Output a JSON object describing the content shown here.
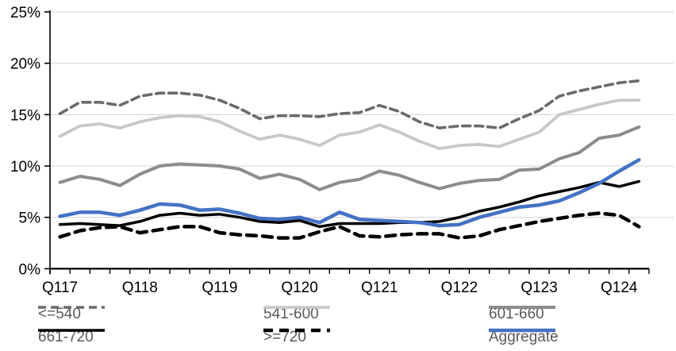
{
  "chart_data": {
    "type": "line",
    "title": "",
    "grid": "horizontal-only",
    "legend_position": "bottom-two-rows",
    "y_axis": {
      "min": 0,
      "max": 25,
      "step": 5,
      "tick_labels": [
        "0%",
        "5%",
        "10%",
        "15%",
        "20%",
        "25%"
      ]
    },
    "x_axis": {
      "n_points": 30,
      "label_every": 4,
      "tick_labels": [
        "Q117",
        "Q118",
        "Q119",
        "Q120",
        "Q121",
        "Q122",
        "Q123",
        "Q124"
      ]
    },
    "series": [
      {
        "name": "<=540",
        "color": "#6b6b6b",
        "style": "dashed",
        "width": 3.6,
        "dash": "10 6",
        "values": [
          15.1,
          16.2,
          16.2,
          15.9,
          16.8,
          17.1,
          17.1,
          16.9,
          16.4,
          15.6,
          14.6,
          14.9,
          14.9,
          14.8,
          15.1,
          15.2,
          15.9,
          15.3,
          14.3,
          13.7,
          13.9,
          13.9,
          13.7,
          14.6,
          15.4,
          16.8,
          17.3,
          17.7,
          18.1,
          18.3
        ]
      },
      {
        "name": "541-600",
        "color": "#c8c8c8",
        "style": "solid",
        "width": 3.8,
        "dash": "",
        "values": [
          12.9,
          13.9,
          14.1,
          13.7,
          14.3,
          14.7,
          14.9,
          14.8,
          14.3,
          13.4,
          12.6,
          13.0,
          12.6,
          12.0,
          13.0,
          13.3,
          14.0,
          13.3,
          12.4,
          11.7,
          12.0,
          12.1,
          11.9,
          12.6,
          13.3,
          15.0,
          15.5,
          16.0,
          16.4,
          16.4
        ]
      },
      {
        "name": "601-660",
        "color": "#8c8c8c",
        "style": "solid",
        "width": 4,
        "dash": "",
        "values": [
          8.4,
          9.0,
          8.7,
          8.1,
          9.2,
          10.0,
          10.2,
          10.1,
          10.0,
          9.7,
          8.8,
          9.2,
          8.7,
          7.7,
          8.4,
          8.7,
          9.5,
          9.1,
          8.4,
          7.8,
          8.3,
          8.6,
          8.7,
          9.6,
          9.7,
          10.7,
          11.3,
          12.7,
          13.0,
          13.8
        ]
      },
      {
        "name": "661-720",
        "color": "#000000",
        "style": "solid",
        "width": 3.5,
        "dash": "",
        "values": [
          4.3,
          4.4,
          4.3,
          4.2,
          4.6,
          5.2,
          5.4,
          5.2,
          5.3,
          5.0,
          4.6,
          4.5,
          4.7,
          4.1,
          4.4,
          4.4,
          4.4,
          4.5,
          4.5,
          4.6,
          5.0,
          5.6,
          6.0,
          6.5,
          7.1,
          7.5,
          7.9,
          8.4,
          8.0,
          8.5
        ]
      },
      {
        "name": ">=720",
        "color": "#000000",
        "style": "dashed",
        "width": 4.5,
        "dash": "12 8",
        "values": [
          3.1,
          3.7,
          4.0,
          4.1,
          3.5,
          3.8,
          4.1,
          4.1,
          3.5,
          3.3,
          3.2,
          3.0,
          3.0,
          3.6,
          4.1,
          3.2,
          3.1,
          3.3,
          3.4,
          3.4,
          3.0,
          3.2,
          3.8,
          4.2,
          4.6,
          4.9,
          5.2,
          5.4,
          5.2,
          4.1
        ]
      },
      {
        "name": "Aggregate",
        "color": "#4472c4",
        "style": "solid",
        "width": 4.5,
        "dash": "",
        "values": [
          5.1,
          5.5,
          5.5,
          5.2,
          5.7,
          6.3,
          6.2,
          5.7,
          5.8,
          5.4,
          4.9,
          4.8,
          5.0,
          4.5,
          5.5,
          4.8,
          4.7,
          4.6,
          4.5,
          4.2,
          4.3,
          5.0,
          5.5,
          6.0,
          6.2,
          6.6,
          7.4,
          8.3,
          9.5,
          10.6
        ]
      }
    ],
    "colors": {
      "background": "#ffffff",
      "gridline": "#d9d9d9",
      "axis": "#000000",
      "axis_text": "#000000",
      "legend_text": "#595959"
    }
  }
}
